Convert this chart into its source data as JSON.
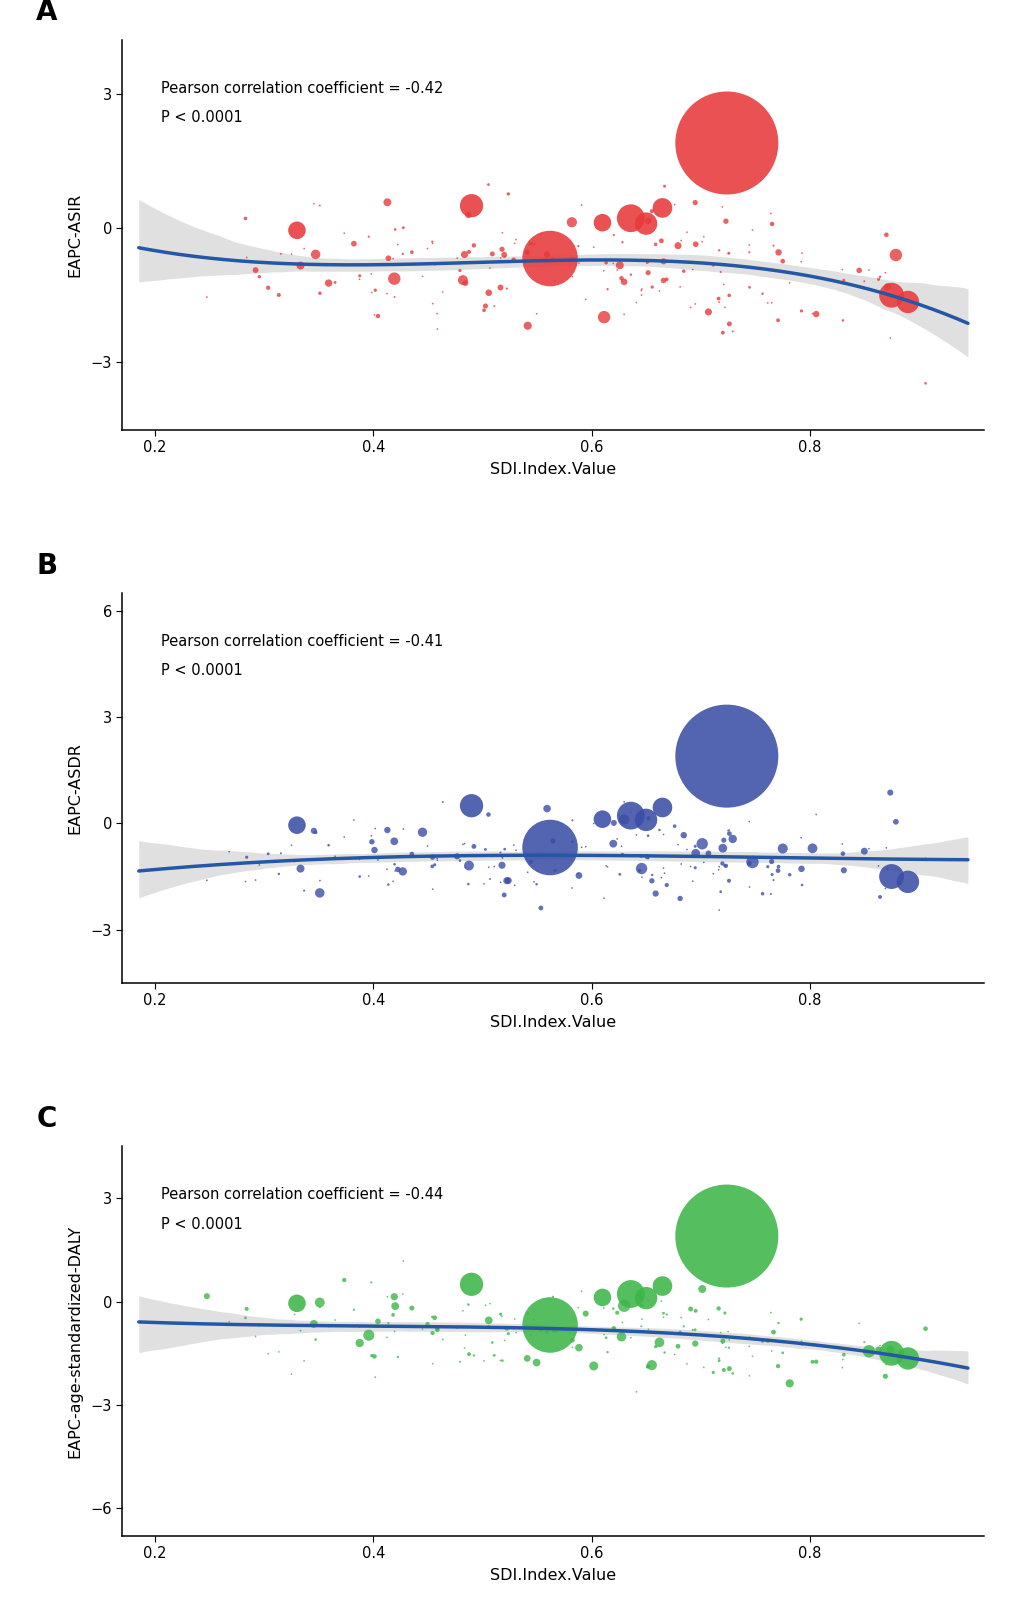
{
  "panels": [
    {
      "label": "A",
      "ylabel": "EAPC-ASIR",
      "xlabel": "SDI.Index.Value",
      "pearson": "Pearson correlation coefficient = -0.42",
      "pval": "P < 0.0001",
      "color": "#E8393A",
      "ylim": [
        -4.5,
        4.2
      ],
      "yticks": [
        -3,
        0,
        3
      ],
      "xlim": [
        0.17,
        0.96
      ],
      "xticks": [
        0.2,
        0.4,
        0.6,
        0.8
      ],
      "trend_coeffs": [
        -6.0,
        6.8,
        -2.4,
        -0.55
      ],
      "ci_scale": 0.38,
      "big_points": {
        "sdi": [
          0.724,
          0.562,
          0.636,
          0.65,
          0.665,
          0.61,
          0.49,
          0.875,
          0.89,
          0.33
        ],
        "eapc": [
          1.9,
          -0.68,
          0.22,
          0.1,
          0.45,
          0.12,
          0.5,
          -1.5,
          -1.65,
          -0.05
        ],
        "size": [
          5500,
          1600,
          400,
          260,
          200,
          160,
          280,
          320,
          260,
          160
        ]
      },
      "n_small": 185,
      "small_seed": 101,
      "small_scale": 0.68
    },
    {
      "label": "B",
      "ylabel": "EAPC-ASDR",
      "xlabel": "SDI.Index.Value",
      "pearson": "Pearson correlation coefficient = -0.41",
      "pval": "P < 0.0001",
      "color": "#3B4EA6",
      "ylim": [
        -4.5,
        6.5
      ],
      "yticks": [
        -3,
        0,
        3,
        6
      ],
      "xlim": [
        0.17,
        0.96
      ],
      "xticks": [
        0.2,
        0.4,
        0.6,
        0.8
      ],
      "trend_coeffs": [
        -6.0,
        6.8,
        -2.4,
        -0.55
      ],
      "ci_scale": 0.38,
      "big_points": {
        "sdi": [
          0.724,
          0.562,
          0.636,
          0.65,
          0.665,
          0.61,
          0.49,
          0.875,
          0.89,
          0.33
        ],
        "eapc": [
          1.9,
          -0.68,
          0.22,
          0.1,
          0.45,
          0.12,
          0.5,
          -1.5,
          -1.65,
          -0.05
        ],
        "size": [
          5500,
          1600,
          400,
          260,
          200,
          160,
          280,
          320,
          260,
          160
        ]
      },
      "n_small": 185,
      "small_seed": 202,
      "small_scale": 0.68
    },
    {
      "label": "C",
      "ylabel": "EAPC-age-standardized-DALY",
      "xlabel": "SDI.Index.Value",
      "pearson": "Pearson correlation coefficient = -0.44",
      "pval": "P < 0.0001",
      "color": "#3DB649",
      "ylim": [
        -6.8,
        4.5
      ],
      "yticks": [
        -6,
        -3,
        0,
        3
      ],
      "xlim": [
        0.17,
        0.96
      ],
      "xticks": [
        0.2,
        0.4,
        0.6,
        0.8
      ],
      "trend_coeffs": [
        -6.0,
        6.8,
        -2.4,
        -0.55
      ],
      "ci_scale": 0.38,
      "big_points": {
        "sdi": [
          0.724,
          0.562,
          0.636,
          0.65,
          0.665,
          0.61,
          0.49,
          0.875,
          0.89,
          0.33
        ],
        "eapc": [
          1.9,
          -0.68,
          0.22,
          0.1,
          0.45,
          0.12,
          0.5,
          -1.5,
          -1.65,
          -0.05
        ],
        "size": [
          5500,
          1600,
          400,
          260,
          200,
          160,
          280,
          320,
          260,
          160
        ]
      },
      "n_small": 185,
      "small_seed": 303,
      "small_scale": 0.68
    }
  ],
  "background_color": "#ffffff",
  "line_color": "#2457A4",
  "ci_color": "#c8c8c8",
  "ci_alpha": 0.55
}
